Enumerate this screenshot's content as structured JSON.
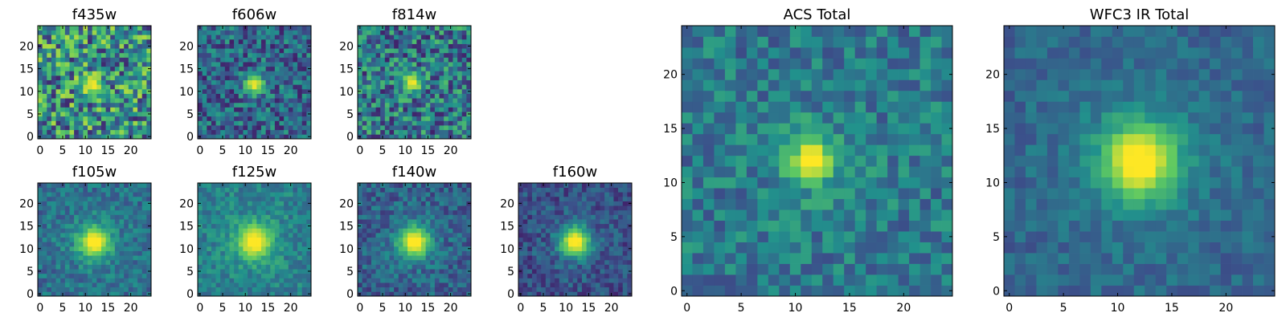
{
  "colormap": [
    "#440154",
    "#3b528b",
    "#21918c",
    "#5ec962",
    "#fde725"
  ],
  "chart_data": [
    {
      "type": "heatmap",
      "title": "f435w",
      "xlim": [
        0,
        24
      ],
      "ylim": [
        0,
        24
      ],
      "xticks": [
        0,
        5,
        10,
        15,
        20
      ],
      "yticks": [
        0,
        5,
        10,
        15,
        20
      ],
      "xtick_labels": [
        "0",
        "5",
        "10",
        "15",
        "20"
      ],
      "ytick_labels": [
        "0",
        "5",
        "10",
        "15",
        "20"
      ],
      "source_peak": [
        11.5,
        11.5
      ],
      "source_width": 1.6,
      "background": 0.5,
      "noise": 0.38,
      "peak_level": 1.0,
      "halo": 0.0,
      "seed": 11
    },
    {
      "type": "heatmap",
      "title": "f606w",
      "xlim": [
        0,
        24
      ],
      "ylim": [
        0,
        24
      ],
      "xticks": [
        0,
        5,
        10,
        15,
        20
      ],
      "yticks": [
        0,
        5,
        10,
        15,
        20
      ],
      "xtick_labels": [
        "0",
        "5",
        "10",
        "15",
        "20"
      ],
      "ytick_labels": [
        "0",
        "5",
        "10",
        "15",
        "20"
      ],
      "source_peak": [
        12,
        11.5
      ],
      "source_width": 1.6,
      "background": 0.33,
      "noise": 0.24,
      "peak_level": 1.0,
      "halo": 0.0,
      "seed": 23
    },
    {
      "type": "heatmap",
      "title": "f814w",
      "xlim": [
        0,
        24
      ],
      "ylim": [
        0,
        24
      ],
      "xticks": [
        0,
        5,
        10,
        15,
        20
      ],
      "yticks": [
        0,
        5,
        10,
        15,
        20
      ],
      "xtick_labels": [
        "0",
        "5",
        "10",
        "15",
        "20"
      ],
      "ytick_labels": [
        "0",
        "5",
        "10",
        "15",
        "20"
      ],
      "source_peak": [
        11.5,
        12
      ],
      "source_width": 1.5,
      "background": 0.4,
      "noise": 0.3,
      "peak_level": 1.0,
      "halo": 0.0,
      "seed": 37
    },
    {
      "type": "heatmap",
      "title": "f105w",
      "xlim": [
        0,
        24
      ],
      "ylim": [
        0,
        24
      ],
      "xticks": [
        0,
        5,
        10,
        15,
        20
      ],
      "yticks": [
        0,
        5,
        10,
        15,
        20
      ],
      "xtick_labels": [
        "0",
        "5",
        "10",
        "15",
        "20"
      ],
      "ytick_labels": [
        "0",
        "5",
        "10",
        "15",
        "20"
      ],
      "source_peak": [
        12,
        11.5
      ],
      "source_width": 2.4,
      "background": 0.36,
      "noise": 0.14,
      "peak_level": 1.0,
      "halo": 0.25,
      "seed": 41
    },
    {
      "type": "heatmap",
      "title": "f125w",
      "xlim": [
        0,
        24
      ],
      "ylim": [
        0,
        24
      ],
      "xticks": [
        0,
        5,
        10,
        15,
        20
      ],
      "yticks": [
        0,
        5,
        10,
        15,
        20
      ],
      "xtick_labels": [
        "0",
        "5",
        "10",
        "15",
        "20"
      ],
      "ytick_labels": [
        "0",
        "5",
        "10",
        "15",
        "20"
      ],
      "source_peak": [
        12,
        11.5
      ],
      "source_width": 2.6,
      "background": 0.42,
      "noise": 0.13,
      "peak_level": 1.0,
      "halo": 0.25,
      "seed": 53
    },
    {
      "type": "heatmap",
      "title": "f140w",
      "xlim": [
        0,
        24
      ],
      "ylim": [
        0,
        24
      ],
      "xticks": [
        0,
        5,
        10,
        15,
        20
      ],
      "yticks": [
        0,
        5,
        10,
        15,
        20
      ],
      "xtick_labels": [
        "0",
        "5",
        "10",
        "15",
        "20"
      ],
      "ytick_labels": [
        "0",
        "5",
        "10",
        "15",
        "20"
      ],
      "source_peak": [
        12,
        11.5
      ],
      "source_width": 2.4,
      "background": 0.3,
      "noise": 0.15,
      "peak_level": 1.0,
      "halo": 0.25,
      "seed": 67
    },
    {
      "type": "heatmap",
      "title": "f160w",
      "xlim": [
        0,
        24
      ],
      "ylim": [
        0,
        24
      ],
      "xticks": [
        0,
        5,
        10,
        15,
        20
      ],
      "yticks": [
        0,
        5,
        10,
        15,
        20
      ],
      "xtick_labels": [
        "0",
        "5",
        "10",
        "15",
        "20"
      ],
      "ytick_labels": [
        "0",
        "5",
        "10",
        "15",
        "20"
      ],
      "source_peak": [
        12,
        11.5
      ],
      "source_width": 2.3,
      "background": 0.24,
      "noise": 0.14,
      "peak_level": 1.0,
      "halo": 0.25,
      "seed": 79
    },
    {
      "type": "heatmap",
      "title": "ACS Total",
      "xlim": [
        0,
        24
      ],
      "ylim": [
        0,
        24
      ],
      "xticks": [
        0,
        5,
        10,
        15,
        20
      ],
      "yticks": [
        0,
        5,
        10,
        15,
        20
      ],
      "xtick_labels": [
        "0",
        "5",
        "10",
        "15",
        "20"
      ],
      "ytick_labels": [
        "0",
        "5",
        "10",
        "15",
        "20"
      ],
      "source_peak": [
        11.5,
        12
      ],
      "source_width": 1.4,
      "background": 0.4,
      "noise": 0.17,
      "peak_level": 1.0,
      "halo": 0.3,
      "seed": 97
    },
    {
      "type": "heatmap",
      "title": "WFC3 IR Total",
      "xlim": [
        0,
        24
      ],
      "ylim": [
        0,
        24
      ],
      "xticks": [
        0,
        5,
        10,
        15,
        20
      ],
      "yticks": [
        0,
        5,
        10,
        15,
        20
      ],
      "xtick_labels": [
        "0",
        "5",
        "10",
        "15",
        "20"
      ],
      "ytick_labels": [
        "0",
        "5",
        "10",
        "15",
        "20"
      ],
      "source_peak": [
        12,
        12
      ],
      "source_width": 2.5,
      "background": 0.32,
      "noise": 0.1,
      "peak_level": 1.0,
      "halo": 0.3,
      "seed": 113
    }
  ]
}
